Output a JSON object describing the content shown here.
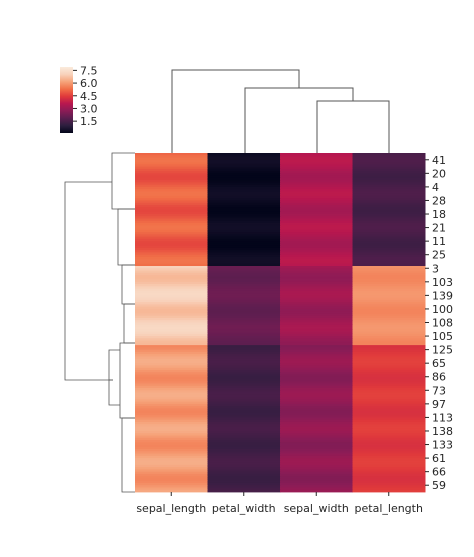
{
  "chart_data": {
    "type": "heatmap",
    "title": "",
    "xlabel": "",
    "ylabel": "",
    "columns": [
      "sepal_length",
      "petal_width",
      "sepal_width",
      "petal_length"
    ],
    "row_tick_labels": [
      "41",
      "20",
      "4",
      "28",
      "18",
      "21",
      "11",
      "25",
      "3",
      "103",
      "139",
      "100",
      "108",
      "105",
      "125",
      "65",
      "86",
      "73",
      "97",
      "113",
      "138",
      "133",
      "61",
      "66",
      "59"
    ],
    "colorbar": {
      "ticks": [
        "7.5",
        "6.0",
        "4.5",
        "3.0",
        "1.5"
      ],
      "tick_values": [
        7.5,
        6.0,
        4.5,
        3.0,
        1.5
      ],
      "vmin": 0.1,
      "vmax": 7.9,
      "colormap": [
        "#03051a",
        "#2c1e3e",
        "#5a1e4f",
        "#8a1c56",
        "#b8174f",
        "#e0393b",
        "#f17048",
        "#f6a47b",
        "#f8d2bb",
        "#faebdd"
      ]
    },
    "row_blocks": [
      {
        "rows": 50,
        "values": [
          5.0,
          0.25,
          3.4,
          1.46
        ]
      },
      {
        "rows": 35,
        "values": [
          6.9,
          2.05,
          3.05,
          5.8
        ]
      },
      {
        "rows": 65,
        "values": [
          6.0,
          1.35,
          2.8,
          4.4
        ]
      }
    ]
  }
}
